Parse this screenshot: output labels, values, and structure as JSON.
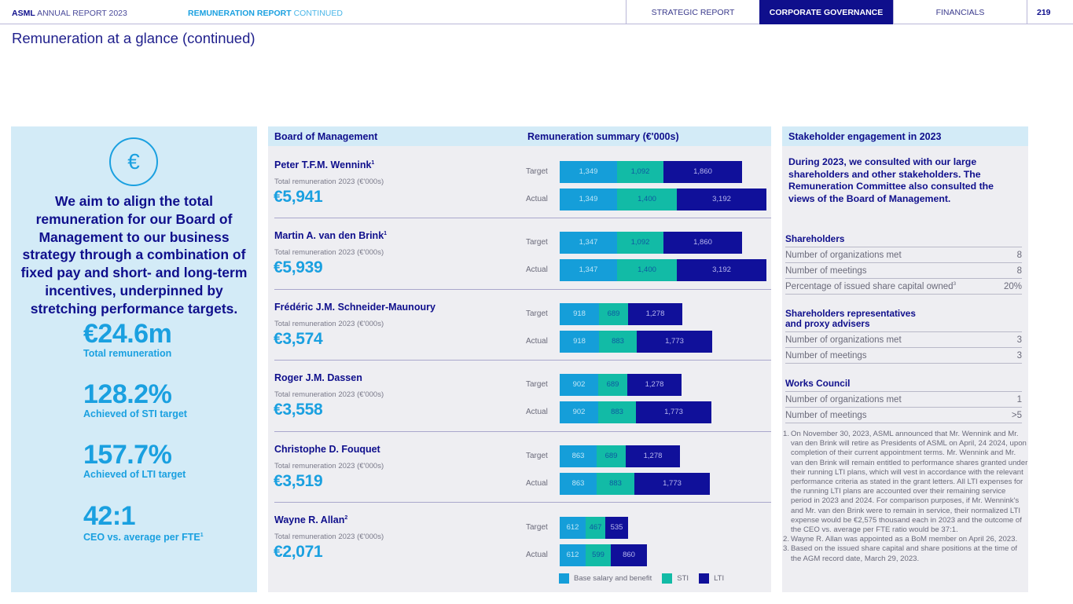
{
  "header": {
    "brand_bold": "ASML",
    "brand_light": "ANNUAL REPORT 2023",
    "section_bold": "REMUNERATION REPORT",
    "section_light": "CONTINUED",
    "nav_tabs": [
      {
        "label": "STRATEGIC REPORT",
        "active": false
      },
      {
        "label": "CORPORATE GOVERNANCE",
        "active": true
      },
      {
        "label": "FINANCIALS",
        "active": false
      }
    ],
    "page_number": "219"
  },
  "page_title": "Remuneration at a glance (continued)",
  "left_panel": {
    "icon": "euro-icon",
    "icon_glyph": "€",
    "mission": "We aim to align the total remuneration for our Board of Management to our business strategy through a combination of fixed pay and short- and long-term incentives, underpinned by stretching performance targets.",
    "kpis": [
      {
        "value": "€24.6m",
        "label": "Total remuneration",
        "sup": ""
      },
      {
        "value": "128.2%",
        "label": "Achieved of STI target",
        "sup": ""
      },
      {
        "value": "157.7%",
        "label": "Achieved of LTI target",
        "sup": ""
      },
      {
        "value": "42:1",
        "label": "CEO vs. average per FTE",
        "sup": "1"
      }
    ]
  },
  "board": {
    "heading": "Board of Management",
    "summary_heading": "Remuneration summary (€'000s)",
    "total_label": "Total remuneration 2023 (€'000s)",
    "row_labels": {
      "target": "Target",
      "actual": "Actual"
    },
    "members": [
      {
        "name": "Peter T.F.M. Wennink",
        "sup": "1",
        "total": "€5,941"
      },
      {
        "name": "Martin A. van den Brink",
        "sup": "1",
        "total": "€5,939"
      },
      {
        "name": "Frédéric J.M. Schneider-Maunoury",
        "sup": "",
        "total": "€3,574"
      },
      {
        "name": "Roger J.M. Dassen",
        "sup": "",
        "total": "€3,558"
      },
      {
        "name": "Christophe D. Fouquet",
        "sup": "",
        "total": "€3,519"
      },
      {
        "name": "Wayne R. Allan",
        "sup": "2",
        "total": "€2,071"
      }
    ],
    "legend": [
      "Base salary and benefit",
      "STI",
      "LTI"
    ],
    "colors": {
      "base": "#159ed9",
      "sti": "#12bba6",
      "lti": "#10109a"
    }
  },
  "chart_data": {
    "type": "bar",
    "stacked": true,
    "orientation": "horizontal",
    "title": "Remuneration summary (€'000s)",
    "categories": [
      "Peter T.F.M. Wennink",
      "Martin A. van den Brink",
      "Frédéric J.M. Schneider-Maunoury",
      "Roger J.M. Dassen",
      "Christophe D. Fouquet",
      "Wayne R. Allan"
    ],
    "series_labels": [
      "Base salary and benefit",
      "STI",
      "LTI"
    ],
    "target": [
      [
        1349,
        1092,
        1860
      ],
      [
        1347,
        1092,
        1860
      ],
      [
        918,
        689,
        1278
      ],
      [
        902,
        689,
        1278
      ],
      [
        863,
        689,
        1278
      ],
      [
        612,
        467,
        535
      ]
    ],
    "actual": [
      [
        1349,
        1400,
        3192
      ],
      [
        1347,
        1400,
        3192
      ],
      [
        918,
        883,
        1773
      ],
      [
        902,
        883,
        1773
      ],
      [
        863,
        883,
        1773
      ],
      [
        612,
        599,
        860
      ]
    ],
    "legend": "bottom"
  },
  "stakeholder": {
    "heading": "Stakeholder engagement in 2023",
    "intro": "During 2023, we consulted with our large shareholders and other stakeholders. The Remuneration Committee also consulted the views of the Board of Management.",
    "groups": [
      {
        "title": "Shareholders",
        "rows": [
          {
            "label": "Number of organizations met",
            "sup": "",
            "value": "8"
          },
          {
            "label": "Number of meetings",
            "sup": "",
            "value": "8"
          },
          {
            "label": "Percentage of issued share capital owned",
            "sup": "3",
            "value": "20%"
          }
        ]
      },
      {
        "title": "Shareholders representatives and proxy advisers",
        "rows": [
          {
            "label": "Number of organizations met",
            "sup": "",
            "value": "3"
          },
          {
            "label": "Number of meetings",
            "sup": "",
            "value": "3"
          }
        ]
      },
      {
        "title": "Works Council",
        "rows": [
          {
            "label": "Number of organizations met",
            "sup": "",
            "value": "1"
          },
          {
            "label": "Number of meetings",
            "sup": "",
            "value": ">5"
          }
        ]
      }
    ],
    "footnotes": [
      {
        "num": "1.",
        "text": "On November 30, 2023, ASML announced that Mr. Wennink and Mr. van den Brink will retire as Presidents of ASML on April, 24 2024, upon completion of their current appointment terms. Mr. Wennink and Mr. van den Brink will remain entitled to performance shares granted under their running LTI plans, which will vest in accordance with the relevant performance criteria as stated in the grant letters. All LTI expenses for the running LTI plans are accounted over their remaining service period in 2023 and 2024. For comparison purposes, if Mr. Wennink's and Mr. van den Brink were to remain in service, their normalized LTI expense would be €2,575 thousand each in 2023 and the outcome of the CEO vs. average per FTE ratio would be 37:1."
      },
      {
        "num": "2.",
        "text": "Wayne R. Allan was appointed as a BoM member on April 26, 2023."
      },
      {
        "num": "3.",
        "text": "Based on the issued share capital and share positions at the time of the AGM record date, March 29, 2023."
      }
    ]
  }
}
